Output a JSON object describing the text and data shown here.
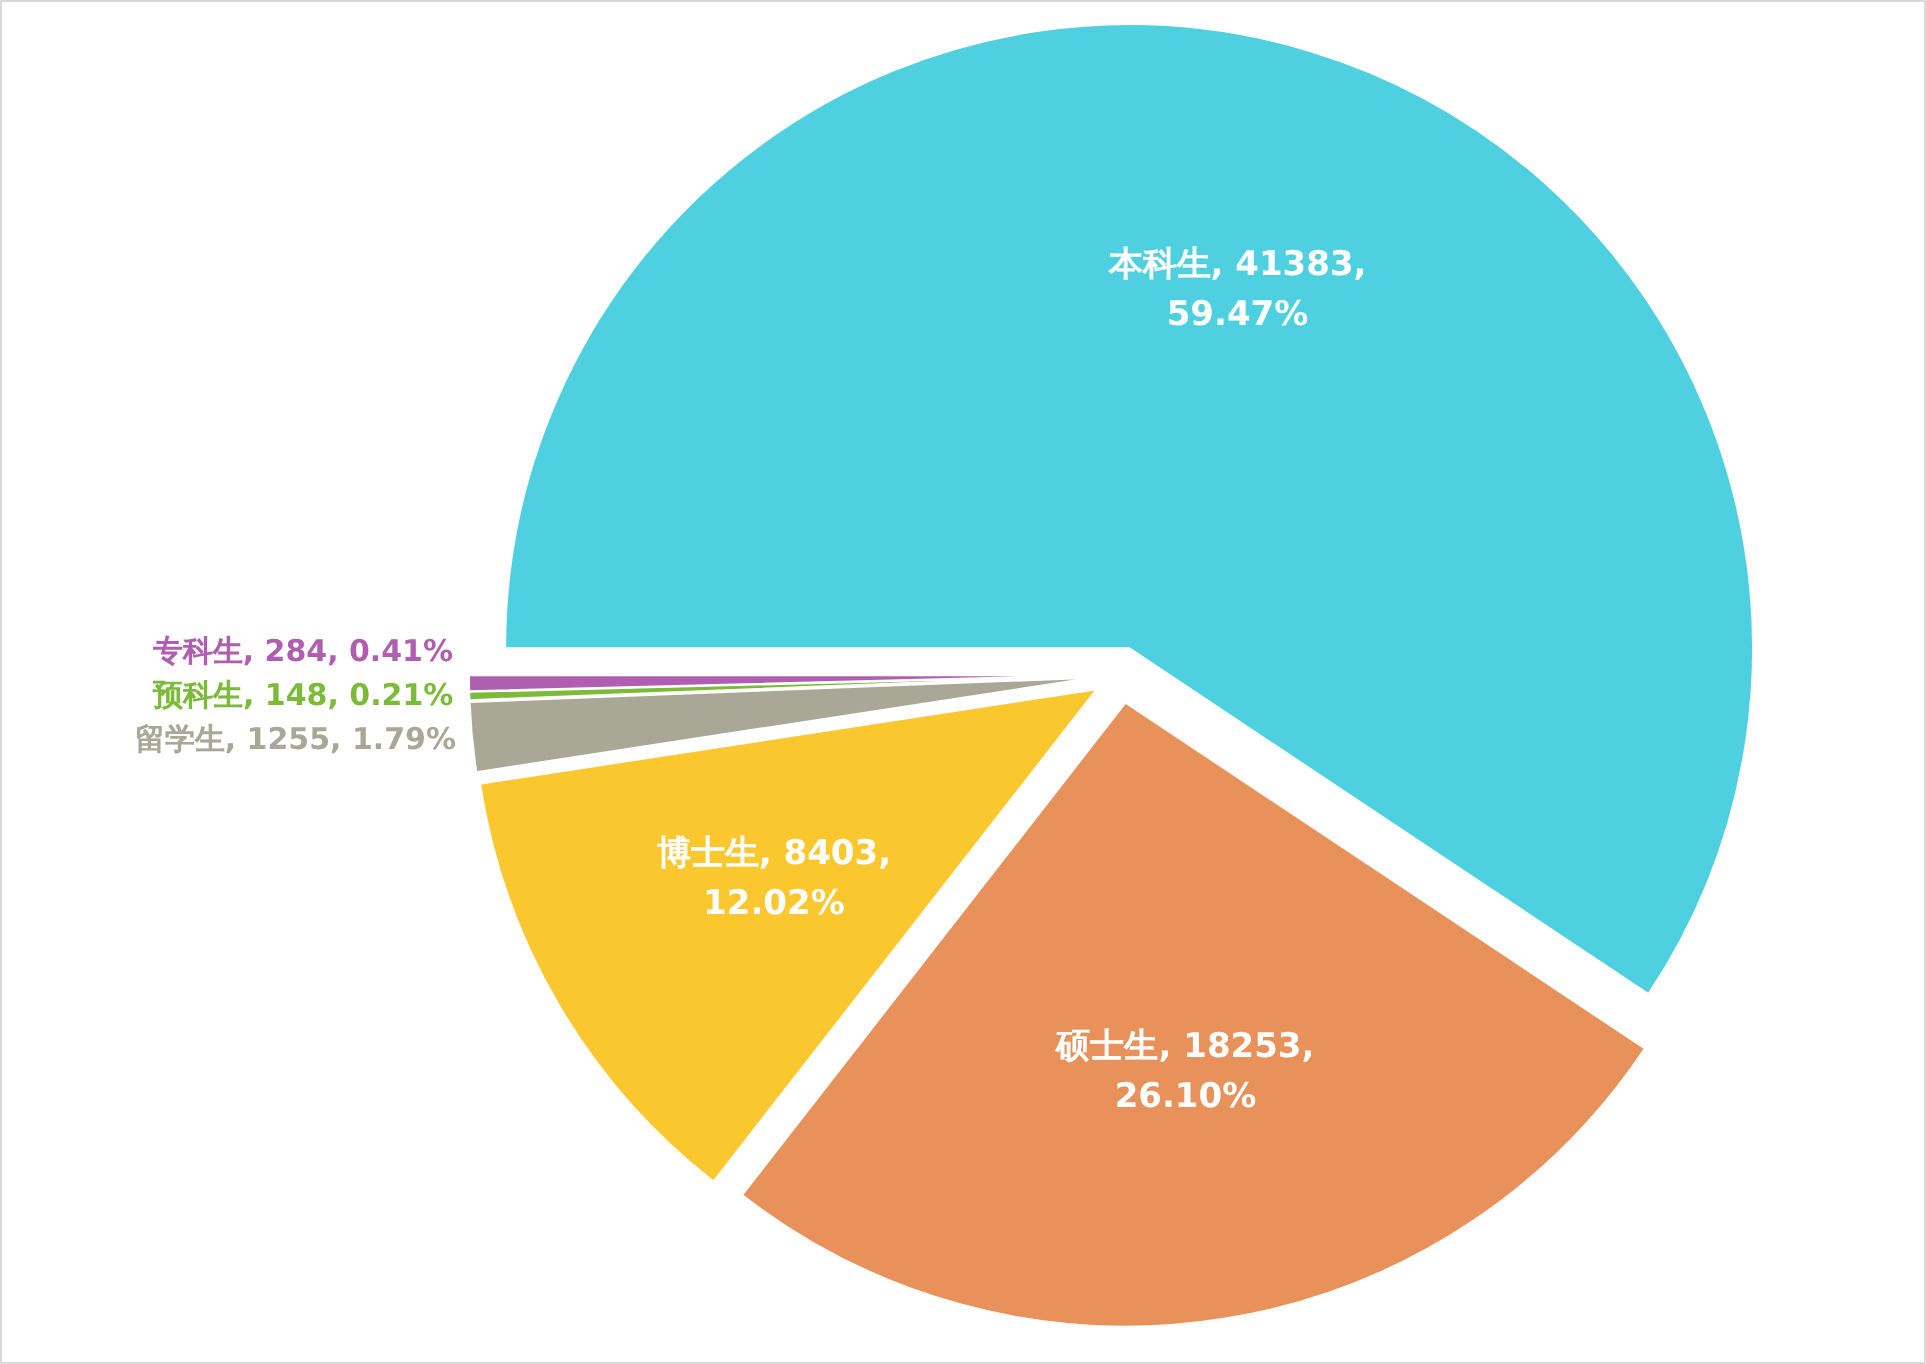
{
  "chart_data": {
    "type": "pie",
    "categories": [
      "本科生",
      "硕士生",
      "博士生",
      "留学生",
      "预科生",
      "专科生"
    ],
    "values": [
      41383,
      18253,
      8403,
      1255,
      148,
      284
    ],
    "value_labels": [
      "41383, 59.47%",
      "18253, 26.10%",
      "8403, 12.02%",
      "1255, 1.79%",
      "148, 0.21%",
      "284, 0.41%"
    ],
    "colors": [
      "#4fd0e0",
      "#e8915a",
      "#fbc72e",
      "#a9a897",
      "#7cba3a",
      "#b05fb0"
    ]
  }
}
